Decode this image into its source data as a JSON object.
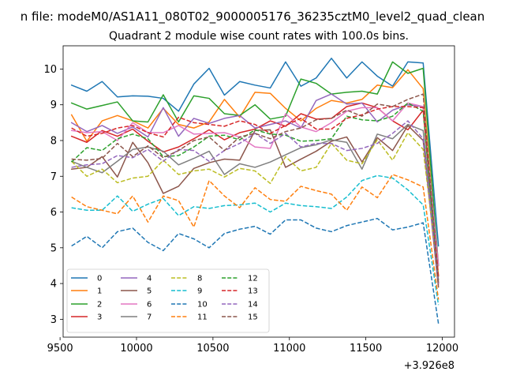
{
  "chart_data": {
    "type": "line",
    "suptitle": "n file: modeM0/AS1A11_080T02_9000005176_36235cztM0_level2_quad_clean",
    "title": "Quadrant 2 module wise count rates with 100.0s bins.",
    "xlabel": "",
    "ylabel": "",
    "x_offset_label": "+3.926e8",
    "xlim": [
      9520,
      12080
    ],
    "ylim": [
      2.5,
      10.65
    ],
    "xticks": [
      9500,
      10000,
      10500,
      11000,
      11500,
      12000
    ],
    "xtick_labels": [
      "9500",
      "10000",
      "10500",
      "11000",
      "11500",
      "12000"
    ],
    "yticks": [
      3,
      4,
      5,
      6,
      7,
      8,
      9,
      10
    ],
    "ytick_labels": [
      "3",
      "4",
      "5",
      "6",
      "7",
      "8",
      "9",
      "10"
    ],
    "grid": false,
    "legend_position": "lower-left",
    "x": [
      9575,
      9675,
      9775,
      9875,
      9975,
      10075,
      10175,
      10275,
      10375,
      10475,
      10575,
      10675,
      10775,
      10875,
      10975,
      11075,
      11175,
      11275,
      11375,
      11475,
      11575,
      11675,
      11775,
      11875,
      11975
    ],
    "series": [
      {
        "name": "0",
        "color": "#1f77b4",
        "dash": "solid",
        "values": [
          9.55,
          9.38,
          9.65,
          9.22,
          9.25,
          9.24,
          9.18,
          8.82,
          9.58,
          10.02,
          9.27,
          9.65,
          9.55,
          9.47,
          10.2,
          9.52,
          9.75,
          10.3,
          9.75,
          10.2,
          9.8,
          9.52,
          10.2,
          10.17,
          5.05
        ]
      },
      {
        "name": "1",
        "color": "#ff7f0e",
        "dash": "solid",
        "values": [
          8.72,
          7.98,
          8.55,
          8.7,
          8.55,
          8.35,
          8.9,
          8.45,
          8.35,
          8.52,
          9.15,
          8.65,
          9.35,
          9.32,
          8.9,
          8.55,
          8.9,
          9.12,
          9.05,
          9.15,
          9.55,
          9.48,
          9.98,
          9.45,
          4.2
        ]
      },
      {
        "name": "2",
        "color": "#2ca02c",
        "dash": "solid",
        "values": [
          9.05,
          8.88,
          8.98,
          9.08,
          8.55,
          8.52,
          9.28,
          8.52,
          9.25,
          9.18,
          8.75,
          8.7,
          9.0,
          8.6,
          8.68,
          9.72,
          9.6,
          9.3,
          9.35,
          9.38,
          9.3,
          10.2,
          9.88,
          10.02,
          4.5
        ]
      },
      {
        "name": "3",
        "color": "#d62728",
        "dash": "solid",
        "values": [
          8.12,
          7.95,
          8.28,
          8.12,
          8.32,
          7.98,
          7.68,
          7.82,
          8.05,
          8.3,
          8.02,
          8.22,
          8.32,
          8.55,
          8.4,
          8.75,
          8.6,
          8.62,
          8.95,
          9.05,
          8.92,
          8.55,
          8.3,
          8.85,
          4.0
        ]
      },
      {
        "name": "4",
        "color": "#9467bd",
        "dash": "solid",
        "values": [
          8.5,
          8.25,
          8.42,
          8.2,
          8.38,
          8.1,
          8.92,
          8.12,
          8.62,
          8.48,
          8.62,
          8.7,
          8.35,
          8.45,
          8.55,
          8.35,
          9.12,
          9.3,
          9.02,
          9.05,
          8.52,
          8.85,
          9.0,
          8.95,
          4.0
        ]
      },
      {
        "name": "5",
        "color": "#8c564b",
        "dash": "solid",
        "values": [
          7.2,
          7.25,
          7.55,
          6.98,
          7.95,
          7.38,
          6.52,
          6.72,
          7.22,
          7.38,
          7.48,
          7.45,
          8.28,
          8.3,
          7.25,
          7.48,
          7.7,
          7.98,
          8.1,
          7.4,
          8.08,
          7.72,
          8.42,
          8.0,
          3.9
        ]
      },
      {
        "name": "6",
        "color": "#e377c2",
        "dash": "solid",
        "values": [
          8.28,
          8.22,
          8.25,
          8.0,
          8.5,
          8.22,
          8.22,
          8.42,
          8.18,
          8.2,
          8.22,
          8.1,
          7.82,
          7.78,
          8.75,
          8.38,
          8.25,
          8.5,
          8.82,
          8.92,
          8.92,
          8.55,
          9.05,
          8.95,
          4.5
        ]
      },
      {
        "name": "7",
        "color": "#7f7f7f",
        "dash": "solid",
        "values": [
          7.42,
          7.25,
          7.1,
          7.42,
          7.75,
          7.82,
          7.7,
          7.32,
          7.5,
          7.7,
          7.05,
          7.35,
          7.25,
          7.4,
          7.6,
          7.8,
          7.88,
          8.02,
          7.95,
          7.2,
          8.18,
          8.05,
          8.45,
          8.28,
          4.1
        ]
      },
      {
        "name": "8",
        "color": "#bcbd22",
        "dash": "dashed",
        "values": [
          7.42,
          7.0,
          7.2,
          6.82,
          6.95,
          7.0,
          7.45,
          7.05,
          7.15,
          7.2,
          6.98,
          7.22,
          7.15,
          6.8,
          7.55,
          7.15,
          7.25,
          7.92,
          7.45,
          7.35,
          8.02,
          7.45,
          8.22,
          7.75,
          4.2
        ]
      },
      {
        "name": "9",
        "color": "#17becf",
        "dash": "dashed",
        "values": [
          6.12,
          6.05,
          6.05,
          6.45,
          6.02,
          6.22,
          6.38,
          5.9,
          6.15,
          6.1,
          6.18,
          6.2,
          6.25,
          6.0,
          6.25,
          6.18,
          6.15,
          6.1,
          6.42,
          6.88,
          7.02,
          6.95,
          6.62,
          6.2,
          3.4
        ]
      },
      {
        "name": "10",
        "color": "#1f77b4",
        "dash": "dashed",
        "values": [
          5.05,
          5.32,
          5.0,
          5.45,
          5.55,
          5.15,
          4.92,
          5.4,
          5.25,
          5.0,
          5.4,
          5.52,
          5.6,
          5.38,
          5.78,
          5.78,
          5.55,
          5.45,
          5.62,
          5.72,
          5.82,
          5.5,
          5.58,
          5.7,
          2.88
        ]
      },
      {
        "name": "11",
        "color": "#ff7f0e",
        "dash": "dashed",
        "values": [
          6.42,
          6.15,
          6.05,
          5.95,
          6.45,
          5.72,
          6.45,
          6.32,
          5.58,
          6.88,
          6.45,
          6.12,
          6.68,
          6.35,
          6.3,
          6.72,
          6.6,
          6.5,
          6.05,
          6.7,
          6.4,
          7.05,
          6.9,
          6.7,
          3.55
        ]
      },
      {
        "name": "12",
        "color": "#2ca02c",
        "dash": "dashed",
        "values": [
          7.4,
          7.8,
          7.72,
          8.05,
          8.18,
          8.05,
          7.55,
          7.58,
          7.82,
          8.12,
          8.15,
          8.02,
          8.3,
          8.18,
          8.15,
          7.98,
          8.0,
          8.05,
          8.68,
          8.58,
          8.55,
          8.68,
          9.05,
          8.82,
          4.05
        ]
      },
      {
        "name": "13",
        "color": "#d62728",
        "dash": "dashed",
        "values": [
          8.35,
          8.12,
          8.2,
          8.35,
          8.42,
          8.22,
          8.1,
          8.65,
          8.5,
          8.45,
          8.4,
          8.55,
          8.45,
          8.2,
          8.42,
          8.62,
          8.32,
          8.32,
          8.62,
          8.72,
          8.88,
          8.95,
          8.95,
          8.92,
          4.2
        ]
      },
      {
        "name": "14",
        "color": "#9467bd",
        "dash": "dashed",
        "values": [
          7.25,
          7.32,
          7.35,
          7.58,
          7.52,
          7.75,
          7.42,
          7.75,
          7.72,
          7.42,
          7.72,
          7.92,
          8.2,
          7.92,
          8.2,
          7.82,
          7.92,
          7.92,
          7.72,
          7.78,
          7.92,
          8.2,
          8.55,
          8.05,
          4.0
        ]
      },
      {
        "name": "15",
        "color": "#8c564b",
        "dash": "dashed",
        "values": [
          7.48,
          7.45,
          7.5,
          7.92,
          7.55,
          7.85,
          7.52,
          7.72,
          8.0,
          8.1,
          7.72,
          8.1,
          8.2,
          8.05,
          8.25,
          8.35,
          8.58,
          8.62,
          8.85,
          8.68,
          9.02,
          8.95,
          9.15,
          9.3,
          3.95
        ]
      }
    ]
  }
}
